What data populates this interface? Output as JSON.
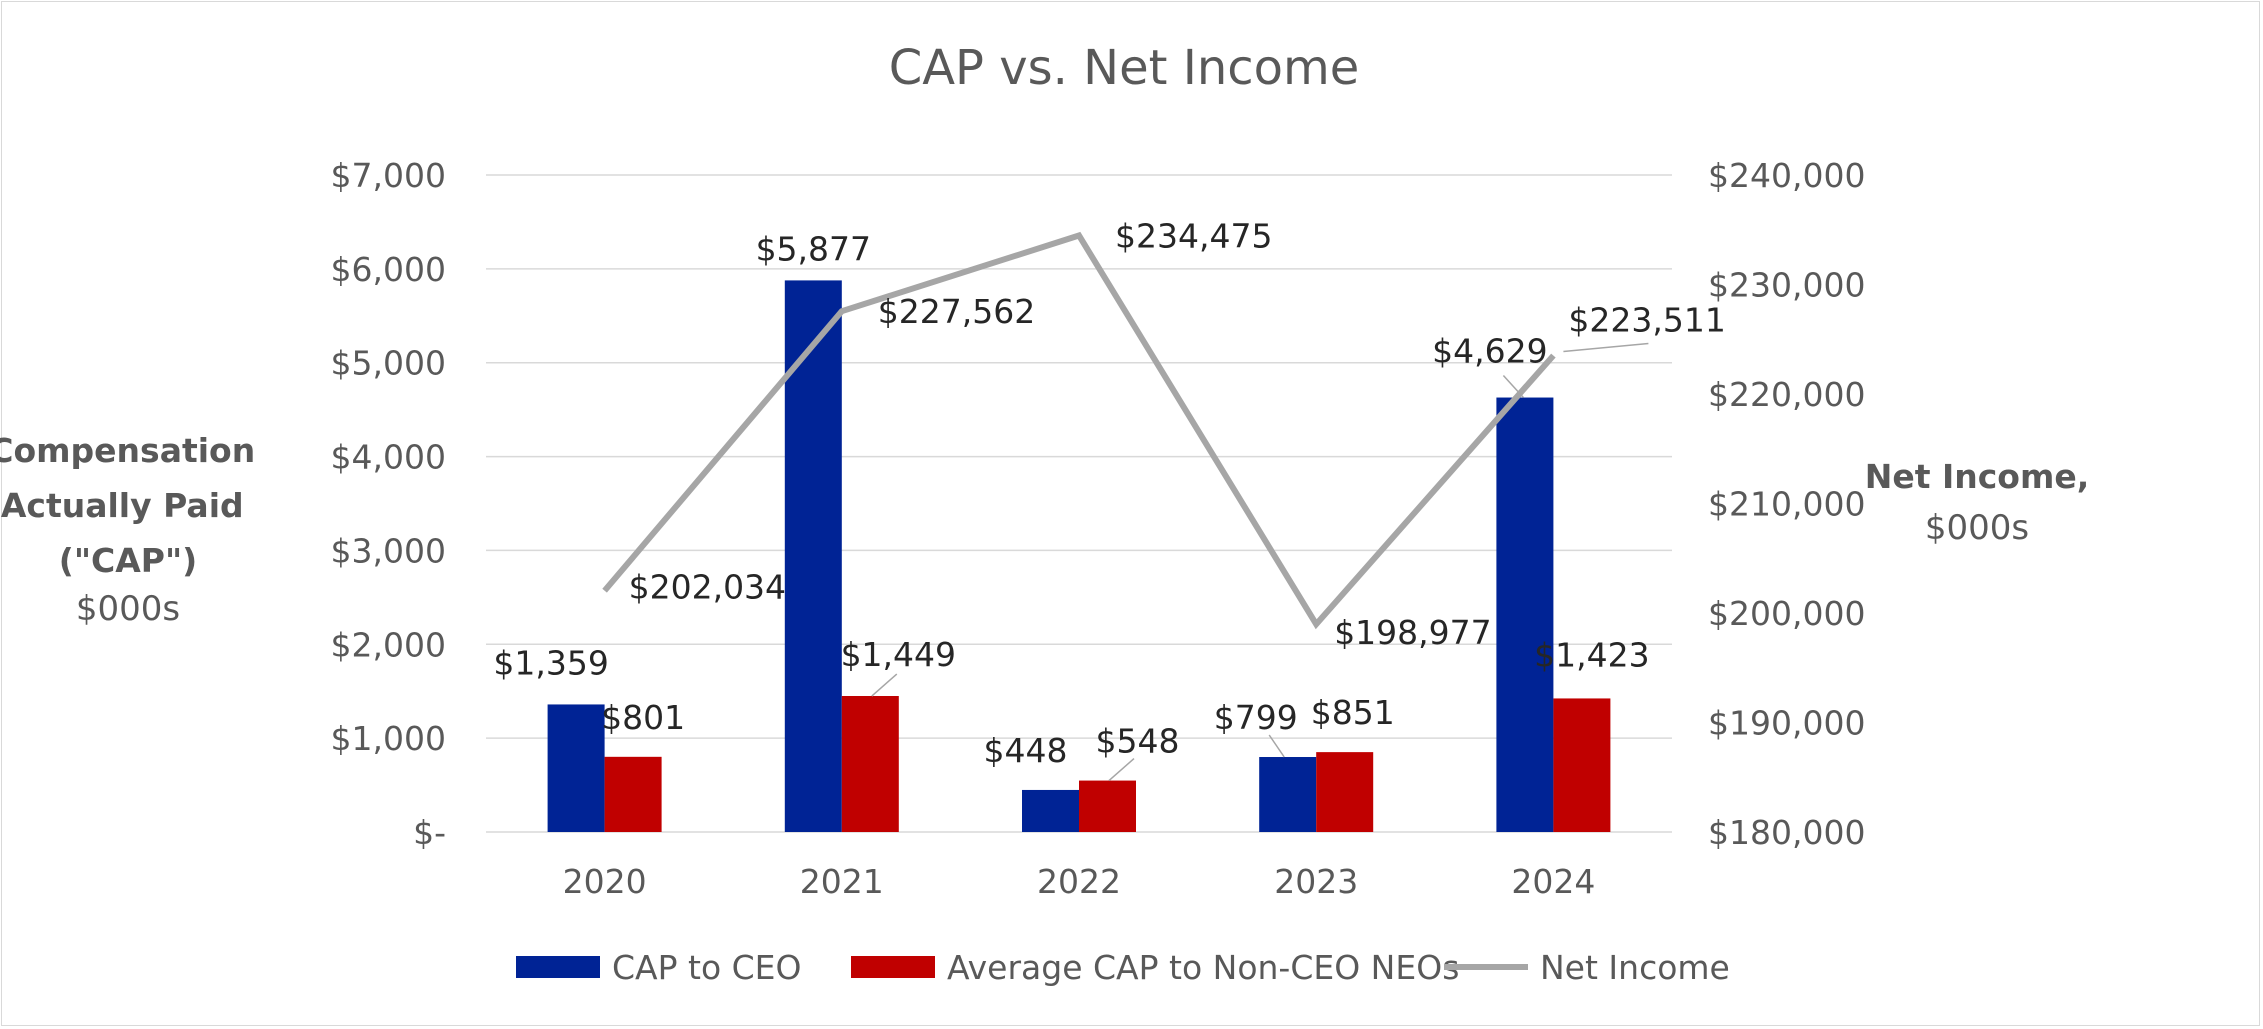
{
  "chart_data": {
    "type": "bar",
    "title": "CAP vs. Net Income",
    "categories": [
      "2020",
      "2021",
      "2022",
      "2023",
      "2024"
    ],
    "y_left": {
      "label_lines": [
        "Compensation",
        "Actually Paid",
        "(\"CAP\")",
        "$000s"
      ],
      "ticks": [
        0,
        1000,
        2000,
        3000,
        4000,
        5000,
        6000,
        7000
      ],
      "tick_labels": [
        "$-",
        "$1,000",
        "$2,000",
        "$3,000",
        "$4,000",
        "$5,000",
        "$6,000",
        "$7,000"
      ],
      "ylim": [
        0,
        7000
      ]
    },
    "y_right": {
      "label_lines": [
        "Net Income,",
        "$000s"
      ],
      "ticks": [
        180000,
        190000,
        200000,
        210000,
        220000,
        230000,
        240000
      ],
      "tick_labels": [
        "$180,000",
        "$190,000",
        "$200,000",
        "$210,000",
        "$220,000",
        "$230,000",
        "$240,000"
      ],
      "ylim": [
        180000,
        240000
      ]
    },
    "grid": true,
    "legend_position": "bottom",
    "series": [
      {
        "name": "CAP to CEO",
        "type": "bar",
        "axis": "left",
        "color": "#002395",
        "values": [
          1359,
          5877,
          448,
          799,
          4629
        ],
        "labels": [
          "$1,359",
          "$5,877",
          "$448",
          "$799",
          "$4,629"
        ]
      },
      {
        "name": "Average CAP to Non-CEO NEOs",
        "type": "bar",
        "axis": "left",
        "color": "#c00000",
        "values": [
          801,
          1449,
          548,
          851,
          1423
        ],
        "labels": [
          "$801",
          "$1,449",
          "$548",
          "$851",
          "$1,423"
        ]
      },
      {
        "name": "Net Income",
        "type": "line",
        "axis": "right",
        "color": "#a6a6a6",
        "values": [
          202034,
          227562,
          234475,
          198977,
          223511
        ],
        "labels": [
          "$202,034",
          "$227,562",
          "$234,475",
          "$198,977",
          "$223,511"
        ]
      }
    ]
  },
  "colors": {
    "text": "#595959",
    "label": "#262626",
    "grid": "#d9d9d9"
  }
}
